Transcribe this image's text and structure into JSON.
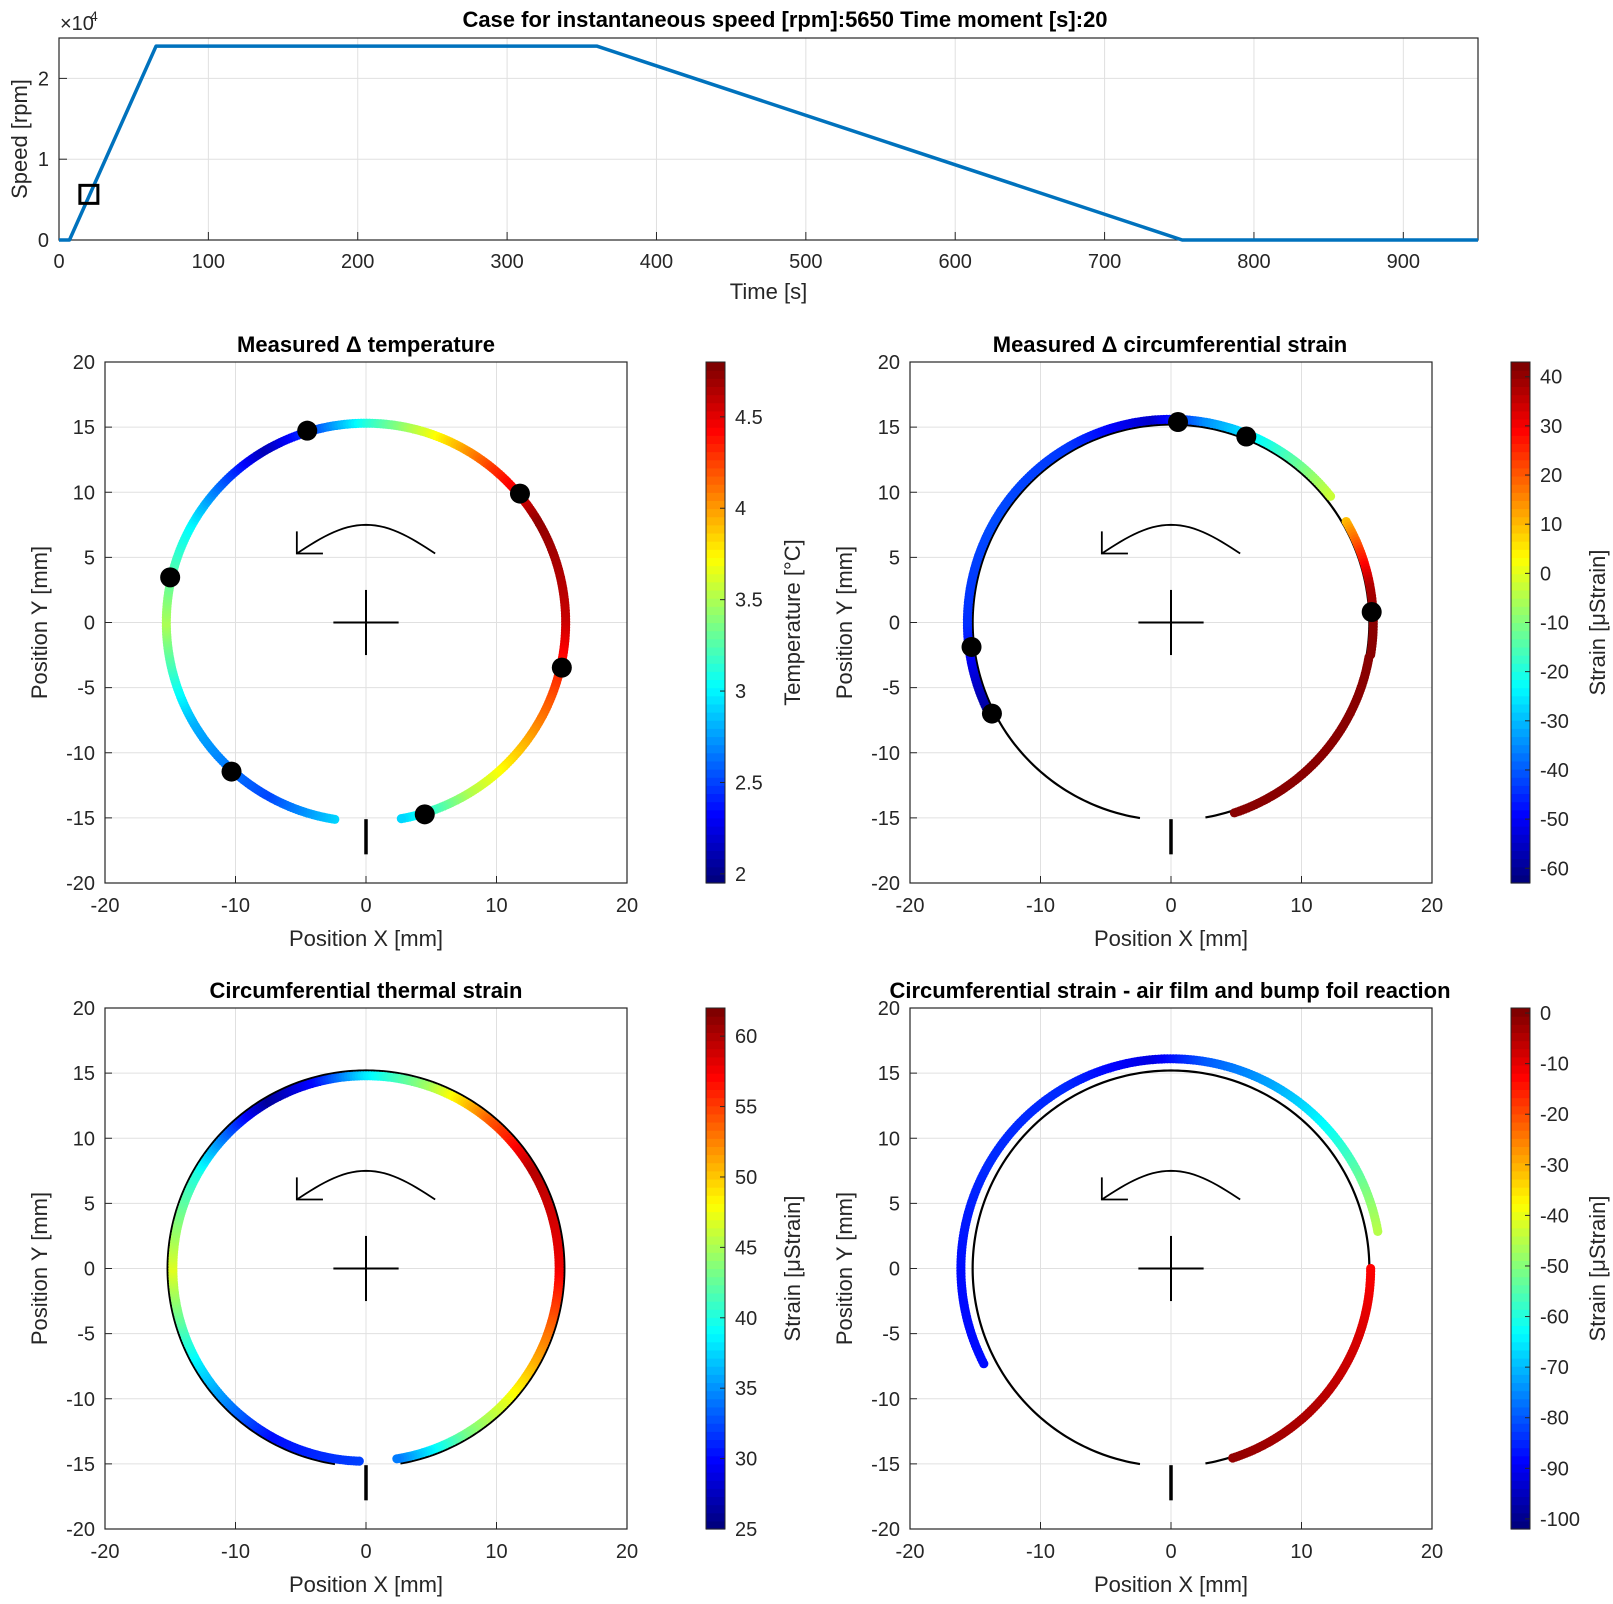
{
  "figure_title": "Case for instantaneous speed [rpm]:5650 Time moment [s]:20",
  "chart_data": [
    {
      "type": "line",
      "title": "Case for instantaneous speed [rpm]:5650 Time moment [s]:20",
      "xlabel": "Time [s]",
      "ylabel": "Speed [rpm]",
      "y_exponent_label": "×10",
      "y_exponent_power": "4",
      "xlim": [
        0,
        950
      ],
      "ylim": [
        0,
        25000
      ],
      "x_ticks": [
        0,
        100,
        200,
        300,
        400,
        500,
        600,
        700,
        800,
        900
      ],
      "x_tick_labels": [
        "0",
        "100",
        "200",
        "300",
        "400",
        "500",
        "600",
        "700",
        "800",
        "900"
      ],
      "y_ticks": [
        0,
        10000,
        20000
      ],
      "y_tick_labels": [
        "0",
        "1",
        "2"
      ],
      "series": [
        {
          "name": "Speed",
          "color": "#0072bd",
          "x": [
            0,
            7,
            65,
            360,
            752,
            950
          ],
          "y": [
            0,
            0,
            24000,
            24000,
            0,
            0
          ]
        }
      ],
      "marker": {
        "name": "current moment",
        "x": 20,
        "y": 5650
      },
      "grid": true
    },
    {
      "type": "scatter",
      "title": "Measured Δ temperature",
      "xlabel": "Position X [mm]",
      "ylabel": "Position Y [mm]",
      "xlim": [
        -20,
        20
      ],
      "ylim": [
        -20,
        20
      ],
      "x_ticks": [
        -20,
        -10,
        0,
        10,
        20
      ],
      "x_tick_labels": [
        "-20",
        "-10",
        "0",
        "10",
        "20"
      ],
      "y_ticks": [
        -20,
        -15,
        -10,
        -5,
        0,
        5,
        10,
        15,
        20
      ],
      "y_tick_labels": [
        "-20",
        "-15",
        "-10",
        "-5",
        "0",
        "5",
        "10",
        "15",
        "20"
      ],
      "radius_mm": 15.2,
      "arc_start_deg": 261,
      "arc_end_deg": -80,
      "color_angles_deg": [
        261,
        240,
        210,
        180,
        150,
        120,
        105,
        90,
        70,
        50,
        30,
        0,
        -30,
        -60,
        -80
      ],
      "color_values": [
        2.9,
        2.5,
        2.8,
        3.5,
        3.0,
        2.1,
        2.5,
        3.1,
        3.7,
        4.3,
        4.75,
        4.6,
        4.1,
        3.5,
        2.9
      ],
      "sensors_deg": [
        -13,
        40,
        107,
        167,
        228,
        287
      ],
      "colorbar": {
        "label": "Temperature [°C]",
        "min": 1.95,
        "max": 4.8,
        "ticks": [
          2,
          2.5,
          3,
          3.5,
          4,
          4.5
        ],
        "tick_labels": [
          "2",
          "2.5",
          "3",
          "3.5",
          "4",
          "4.5"
        ]
      },
      "grid": true
    },
    {
      "type": "scatter",
      "title": "Measured Δ circumferential strain",
      "xlabel": "Position X [mm]",
      "ylabel": "Position Y [mm]",
      "xlim": [
        -20,
        20
      ],
      "ylim": [
        -20,
        20
      ],
      "x_ticks": [
        -20,
        -10,
        0,
        10,
        20
      ],
      "x_tick_labels": [
        "-20",
        "-10",
        "0",
        "10",
        "20"
      ],
      "y_ticks": [
        -20,
        -15,
        -10,
        -5,
        0,
        5,
        10,
        15,
        20
      ],
      "y_tick_labels": [
        "-20",
        "-15",
        "-10",
        "-5",
        "0",
        "5",
        "10",
        "15",
        "20"
      ],
      "radius_mm": 15.2,
      "arc_start_deg": 261,
      "arc_end_deg": -80,
      "segments": [
        {
          "start_deg": 208,
          "end_deg": 38,
          "offset_mm": 0.4,
          "color_angles_deg": [
            208,
            180,
            150,
            120,
            95,
            80,
            60,
            38
          ],
          "color_values": [
            -62,
            -45,
            -42,
            -44,
            -55,
            -35,
            -20,
            -2
          ]
        },
        {
          "start_deg": 30,
          "end_deg": -10,
          "offset_mm": 0.3,
          "color_angles_deg": [
            30,
            20,
            10,
            0,
            -10
          ],
          "color_values": [
            10,
            25,
            38,
            42,
            42
          ]
        },
        {
          "start_deg": -10,
          "end_deg": -72,
          "offset_mm": 0.2,
          "color_angles_deg": [
            -10,
            -72
          ],
          "color_values": [
            42,
            42
          ]
        }
      ],
      "sensors_deg": [
        3,
        68,
        88,
        187,
        207
      ],
      "colorbar": {
        "label": "Strain [μStrain]",
        "min": -63,
        "max": 43,
        "ticks": [
          -60,
          -50,
          -40,
          -30,
          -20,
          -10,
          0,
          10,
          20,
          30,
          40
        ],
        "tick_labels": [
          "-60",
          "-50",
          "-40",
          "-30",
          "-20",
          "-10",
          "0",
          "10",
          "20",
          "30",
          "40"
        ]
      },
      "grid": true
    },
    {
      "type": "scatter",
      "title": "Circumferential thermal strain",
      "xlabel": "Position X [mm]",
      "ylabel": "Position Y [mm]",
      "xlim": [
        -20,
        20
      ],
      "ylim": [
        -20,
        20
      ],
      "x_ticks": [
        -20,
        -10,
        0,
        10,
        20
      ],
      "x_tick_labels": [
        "-20",
        "-10",
        "0",
        "10",
        "20"
      ],
      "y_ticks": [
        -20,
        -15,
        -10,
        -5,
        0,
        5,
        10,
        15,
        20
      ],
      "y_tick_labels": [
        "-20",
        "-15",
        "-10",
        "-5",
        "0",
        "5",
        "10",
        "15",
        "20"
      ],
      "radius_mm": 15.2,
      "arc_start_deg": 261,
      "arc_end_deg": -80,
      "segments": [
        {
          "start_deg": 268,
          "end_deg": -81,
          "offset_mm": -0.4,
          "color_angles_deg": [
            268,
            240,
            210,
            180,
            150,
            120,
            105,
            90,
            70,
            50,
            30,
            0,
            -30,
            -60,
            -81
          ],
          "color_values": [
            32,
            30,
            38,
            47,
            40,
            26,
            30,
            38,
            45,
            54,
            60,
            58,
            51,
            43,
            34
          ]
        }
      ],
      "colorbar": {
        "label": "Strain [μStrain]",
        "min": 25,
        "max": 62,
        "ticks": [
          25,
          30,
          35,
          40,
          45,
          50,
          55,
          60
        ],
        "tick_labels": [
          "25",
          "30",
          "35",
          "40",
          "45",
          "50",
          "55",
          "60"
        ]
      },
      "grid": true
    },
    {
      "type": "scatter",
      "title": "Circumferential strain - air film and bump foil reaction",
      "xlabel": "Position X [mm]",
      "ylabel": "Position Y [mm]",
      "xlim": [
        -20,
        20
      ],
      "ylim": [
        -20,
        20
      ],
      "x_ticks": [
        -20,
        -10,
        0,
        10,
        20
      ],
      "x_tick_labels": [
        "-20",
        "-10",
        "0",
        "10",
        "20"
      ],
      "y_ticks": [
        -20,
        -15,
        -10,
        -5,
        0,
        5,
        10,
        15,
        20
      ],
      "y_tick_labels": [
        "-20",
        "-15",
        "-10",
        "-5",
        "0",
        "5",
        "10",
        "15",
        "20"
      ],
      "radius_mm": 15.2,
      "arc_start_deg": 261,
      "arc_end_deg": -80,
      "segments": [
        {
          "start_deg": 207,
          "end_deg": 10,
          "offset_mm": 0.9,
          "color_angles_deg": [
            207,
            180,
            150,
            120,
            95,
            80,
            60,
            40,
            20,
            10
          ],
          "color_values": [
            -88,
            -88,
            -85,
            -85,
            -92,
            -80,
            -72,
            -62,
            -50,
            -45
          ]
        },
        {
          "start_deg": 0,
          "end_deg": -72,
          "offset_mm": 0.1,
          "color_angles_deg": [
            0,
            -20,
            -45,
            -72
          ],
          "color_values": [
            -12,
            -8,
            -4,
            -1
          ]
        }
      ],
      "colorbar": {
        "label": "Strain [μStrain]",
        "min": -102,
        "max": 1,
        "ticks": [
          -100,
          -90,
          -80,
          -70,
          -60,
          -50,
          -40,
          -30,
          -20,
          -10,
          0
        ],
        "tick_labels": [
          "-100",
          "-90",
          "-80",
          "-70",
          "-60",
          "-50",
          "-40",
          "-30",
          "-20",
          "-10",
          "0"
        ]
      },
      "grid": true
    }
  ]
}
